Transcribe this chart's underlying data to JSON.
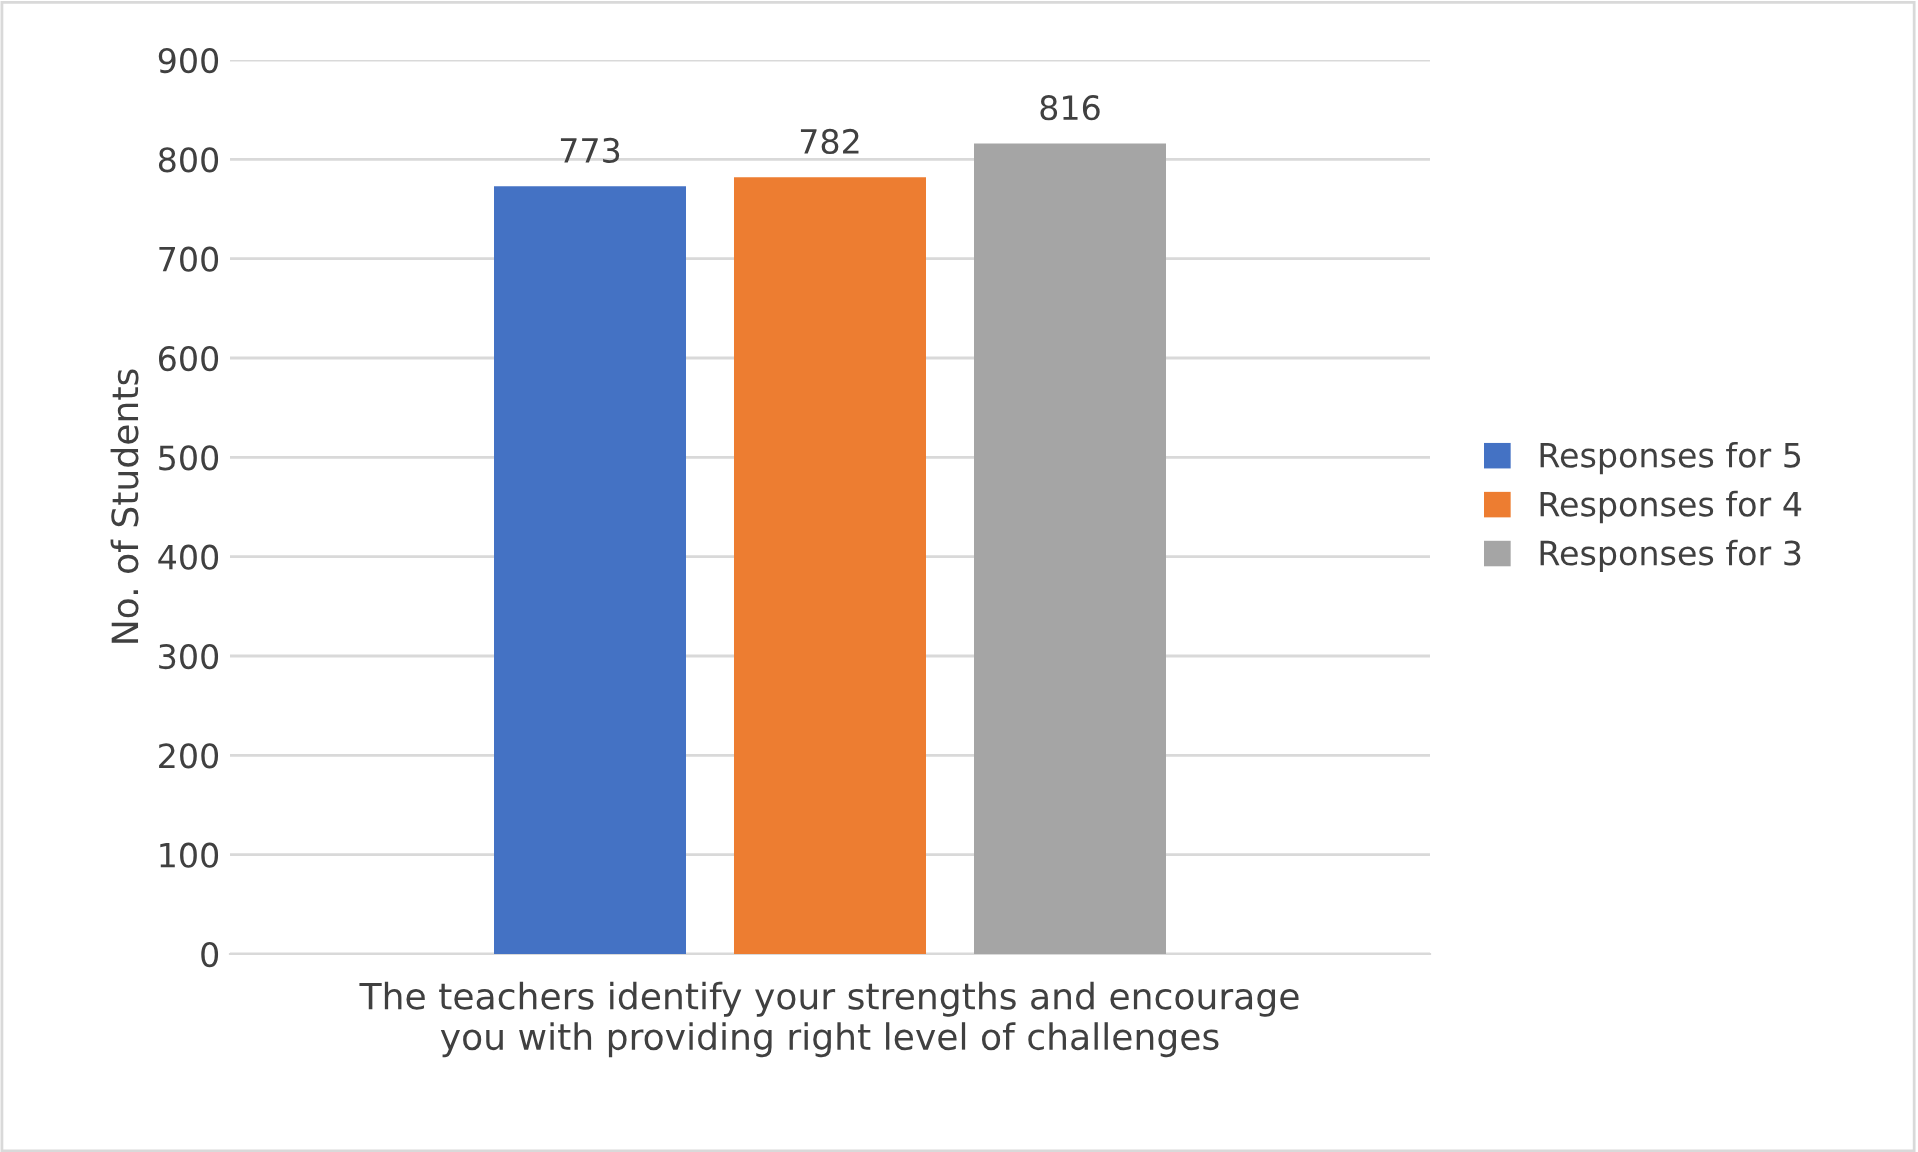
{
  "chart_data": {
    "type": "bar",
    "ylabel": "No. of Students",
    "categories": [
      "The teachers identify your strengths and encourage you with providing right level of challenges"
    ],
    "series": [
      {
        "name": "Responses for 5",
        "color": "#4472c4",
        "values": [
          773
        ]
      },
      {
        "name": "Responses for 4",
        "color": "#ed7d31",
        "values": [
          782
        ]
      },
      {
        "name": "Responses for 3",
        "color": "#a5a5a5",
        "values": [
          816
        ]
      }
    ],
    "ylim": [
      0,
      900
    ],
    "yticks": [
      0,
      100,
      200,
      300,
      400,
      500,
      600,
      700,
      800,
      900
    ],
    "grid": "y",
    "legend": "right",
    "data_labels": true
  }
}
